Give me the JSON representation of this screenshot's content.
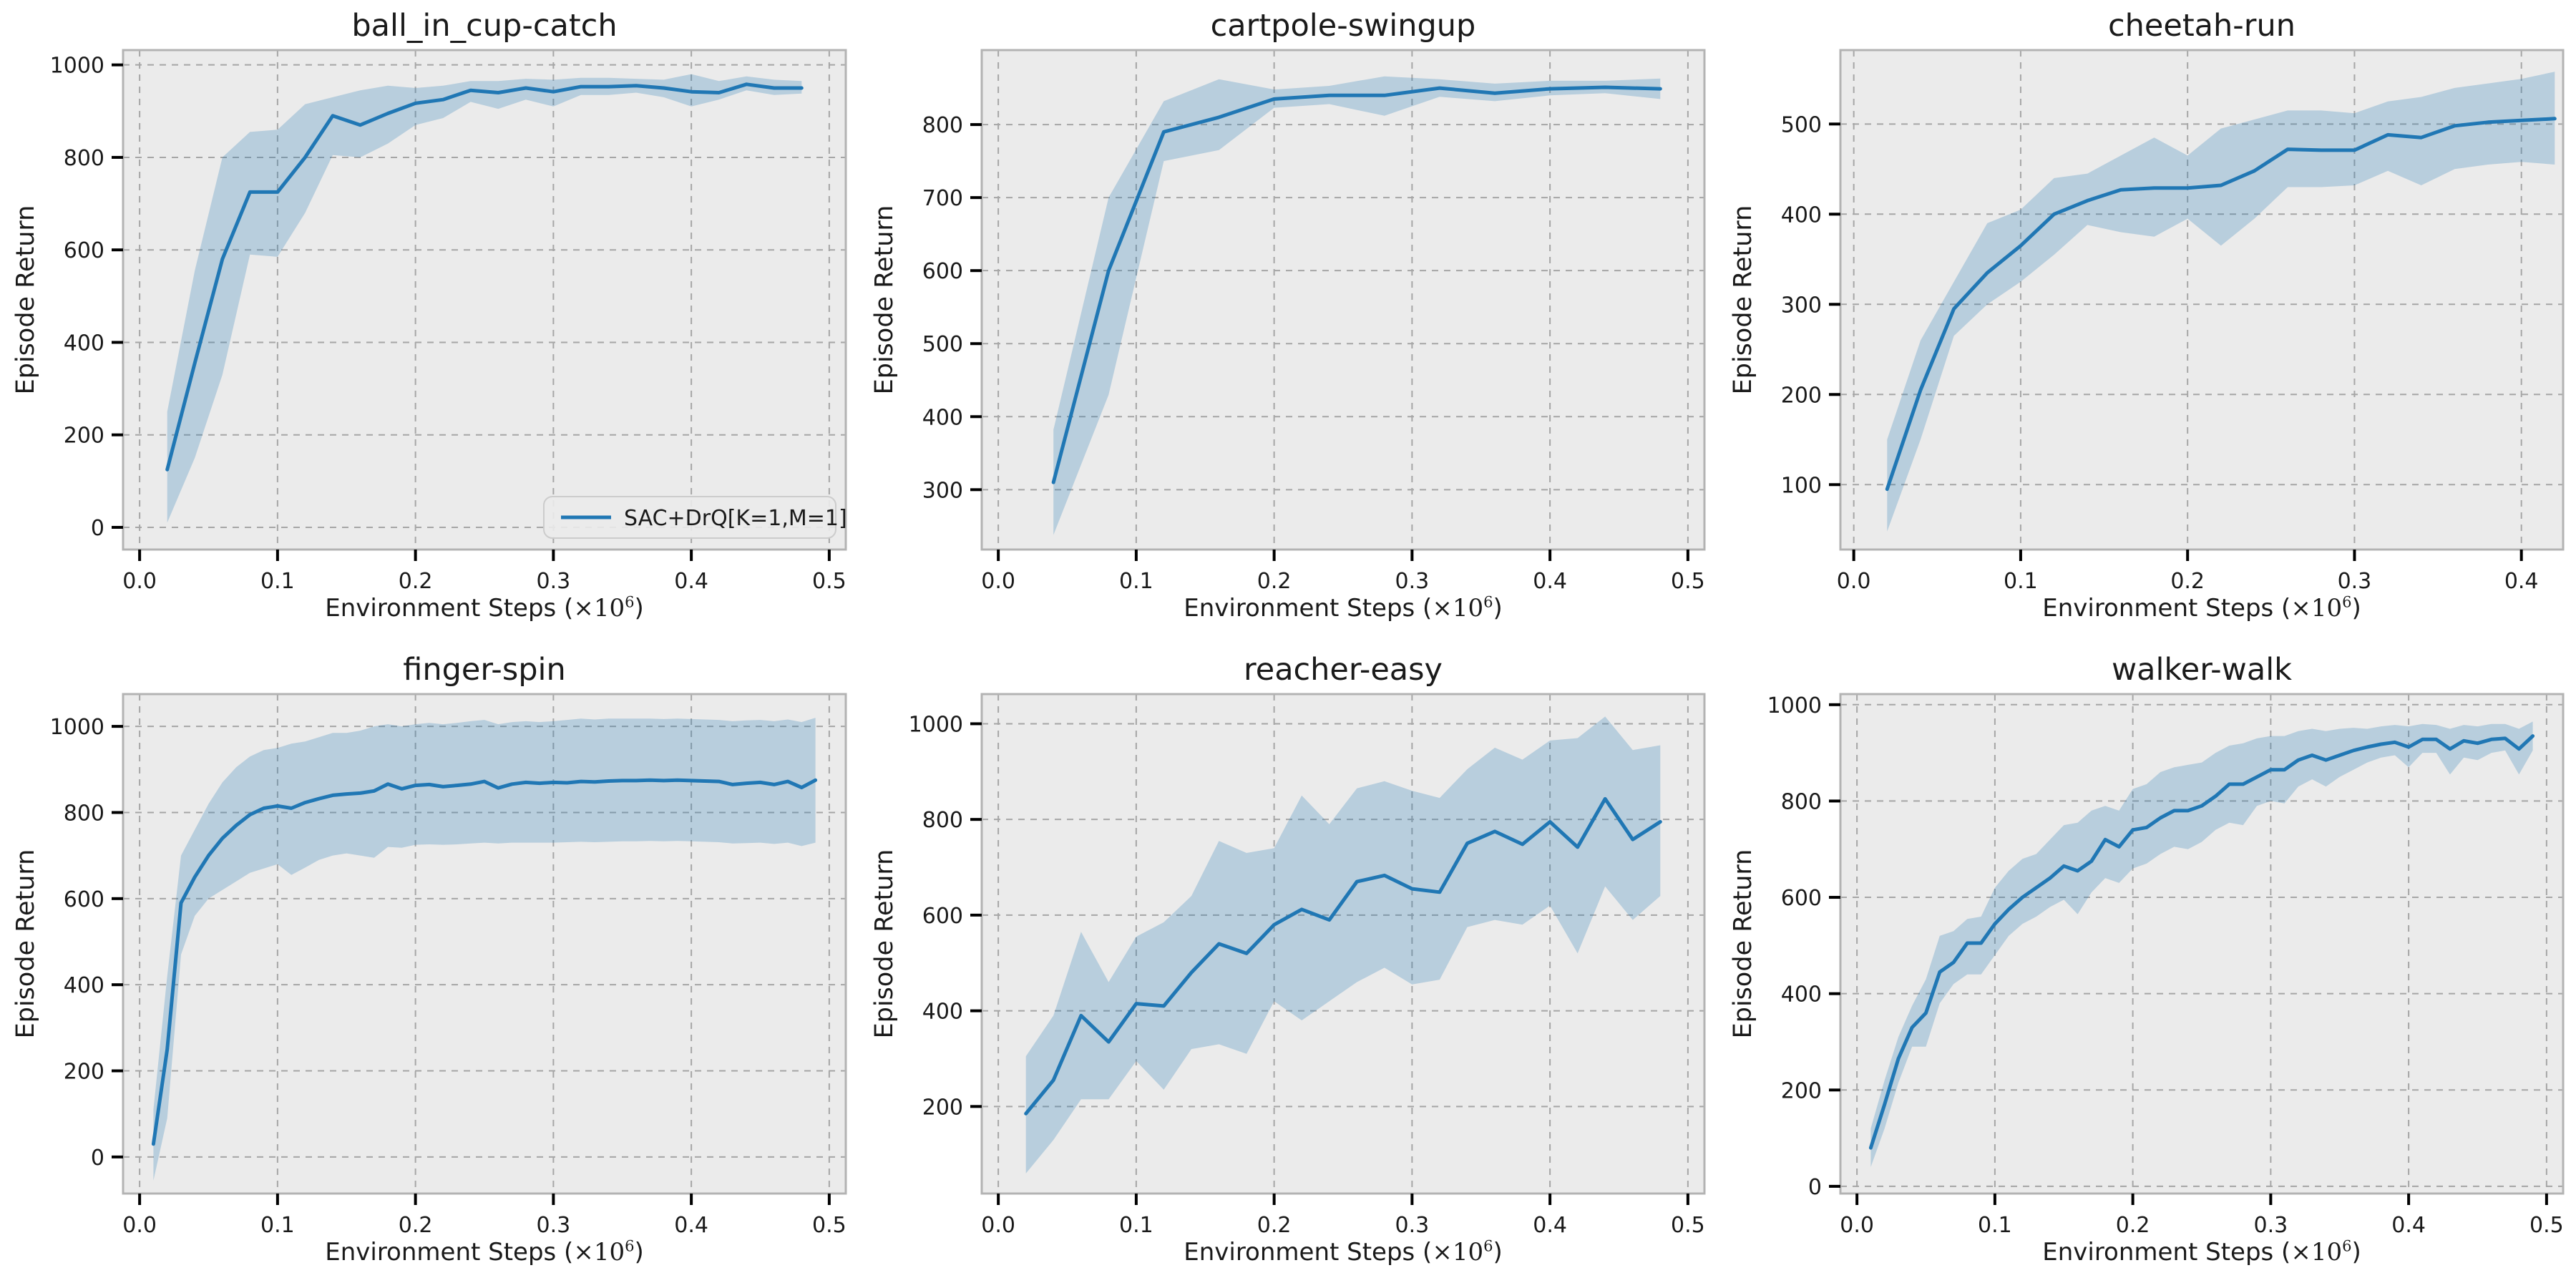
{
  "figure": {
    "ylabel": "Episode Return",
    "xlabel_prefix": "Environment Steps (",
    "xlabel_times": "×10",
    "xlabel_exponent": "6",
    "xlabel_close": ")",
    "legend_label": "SAC+DrQ[K=1,M=1]",
    "style": {
      "line": "#2077b4",
      "band": "rgba(31,119,180,0.25)",
      "plot_bg": "#ebebeb",
      "grid": "#a6a6a6",
      "spine": "#b3b3b3",
      "tick": "#000000",
      "text": "#1a1a1a",
      "legend_bg": "rgba(235,235,235,0.9)",
      "legend_border": "#cccccc"
    }
  },
  "chart_data": [
    {
      "type": "line",
      "title": "ball_in_cup-catch",
      "xlabel": "Environment Steps (×10⁶)",
      "ylabel": "Episode Return",
      "grid": true,
      "legend": [
        "SAC+DrQ[K=1,M=1]"
      ],
      "legend_position": "lower right",
      "xlim": [
        -0.012,
        0.512
      ],
      "ylim": [
        -48,
        1032
      ],
      "xticks": [
        0.0,
        0.1,
        0.2,
        0.3,
        0.4,
        0.5
      ],
      "yticks": [
        0,
        200,
        400,
        600,
        800,
        1000
      ],
      "x": [
        0.02,
        0.04,
        0.06,
        0.08,
        0.1,
        0.12,
        0.14,
        0.16,
        0.18,
        0.2,
        0.22,
        0.24,
        0.26,
        0.28,
        0.3,
        0.32,
        0.34,
        0.36,
        0.38,
        0.4,
        0.42,
        0.44,
        0.46,
        0.48
      ],
      "y": [
        125,
        355,
        580,
        725,
        725,
        800,
        890,
        870,
        895,
        917,
        925,
        945,
        940,
        950,
        942,
        953,
        953,
        955,
        950,
        942,
        940,
        958,
        950,
        950
      ],
      "y_lower": [
        10,
        150,
        330,
        590,
        585,
        680,
        805,
        800,
        830,
        870,
        885,
        920,
        905,
        925,
        910,
        935,
        935,
        940,
        930,
        910,
        925,
        945,
        935,
        938
      ],
      "y_upper": [
        250,
        555,
        800,
        855,
        860,
        915,
        930,
        945,
        955,
        950,
        955,
        965,
        965,
        970,
        968,
        972,
        972,
        970,
        968,
        980,
        965,
        975,
        968,
        965
      ]
    },
    {
      "type": "line",
      "title": "cartpole-swingup",
      "xlabel": "Environment Steps (×10⁶)",
      "ylabel": "Episode Return",
      "grid": true,
      "xlim": [
        -0.012,
        0.512
      ],
      "ylim": [
        218,
        902
      ],
      "xticks": [
        0.0,
        0.1,
        0.2,
        0.3,
        0.4,
        0.5
      ],
      "yticks": [
        300,
        400,
        500,
        600,
        700,
        800
      ],
      "x": [
        0.04,
        0.08,
        0.12,
        0.16,
        0.2,
        0.24,
        0.28,
        0.32,
        0.36,
        0.4,
        0.44,
        0.48
      ],
      "y": [
        310,
        600,
        790,
        810,
        835,
        840,
        840,
        850,
        843,
        849,
        851,
        849
      ],
      "y_lower": [
        238,
        430,
        750,
        765,
        823,
        828,
        812,
        838,
        832,
        840,
        843,
        835
      ],
      "y_upper": [
        382,
        700,
        832,
        862,
        848,
        853,
        866,
        862,
        856,
        860,
        860,
        863
      ]
    },
    {
      "type": "line",
      "title": "cheetah-run",
      "xlabel": "Environment Steps (×10⁶)",
      "ylabel": "Episode Return",
      "grid": true,
      "xlim": [
        -0.008,
        0.425
      ],
      "ylim": [
        28,
        582
      ],
      "xticks": [
        0.0,
        0.1,
        0.2,
        0.3,
        0.4
      ],
      "yticks": [
        100,
        200,
        300,
        400,
        500
      ],
      "x": [
        0.02,
        0.04,
        0.06,
        0.08,
        0.1,
        0.12,
        0.14,
        0.16,
        0.18,
        0.2,
        0.22,
        0.24,
        0.26,
        0.28,
        0.3,
        0.32,
        0.34,
        0.36,
        0.38,
        0.4,
        0.42
      ],
      "y": [
        95,
        205,
        295,
        335,
        365,
        400,
        415,
        427,
        429,
        429,
        432,
        448,
        472,
        471,
        471,
        488,
        485,
        498,
        502,
        504,
        506
      ],
      "y_lower": [
        48,
        150,
        265,
        300,
        325,
        355,
        388,
        380,
        375,
        395,
        365,
        395,
        430,
        430,
        432,
        448,
        432,
        450,
        455,
        458,
        455
      ],
      "y_upper": [
        150,
        260,
        325,
        390,
        405,
        440,
        445,
        465,
        485,
        465,
        495,
        505,
        515,
        515,
        512,
        525,
        530,
        540,
        545,
        550,
        558
      ]
    },
    {
      "type": "line",
      "title": "finger-spin",
      "xlabel": "Environment Steps (×10⁶)",
      "ylabel": "Episode Return",
      "grid": true,
      "xlim": [
        -0.012,
        0.512
      ],
      "ylim": [
        -85,
        1075
      ],
      "xticks": [
        0.0,
        0.1,
        0.2,
        0.3,
        0.4,
        0.5
      ],
      "yticks": [
        0,
        200,
        400,
        600,
        800,
        1000
      ],
      "x": [
        0.01,
        0.02,
        0.03,
        0.04,
        0.05,
        0.06,
        0.07,
        0.08,
        0.09,
        0.1,
        0.11,
        0.12,
        0.13,
        0.14,
        0.15,
        0.16,
        0.17,
        0.18,
        0.19,
        0.2,
        0.21,
        0.22,
        0.23,
        0.24,
        0.25,
        0.26,
        0.27,
        0.28,
        0.29,
        0.3,
        0.31,
        0.32,
        0.33,
        0.34,
        0.35,
        0.36,
        0.37,
        0.38,
        0.39,
        0.4,
        0.41,
        0.42,
        0.43,
        0.44,
        0.45,
        0.46,
        0.47,
        0.48,
        0.49
      ],
      "y": [
        30,
        250,
        590,
        650,
        700,
        740,
        770,
        795,
        810,
        815,
        810,
        823,
        832,
        840,
        843,
        845,
        850,
        866,
        855,
        863,
        865,
        860,
        863,
        866,
        872,
        857,
        866,
        870,
        868,
        870,
        869,
        872,
        871,
        873,
        874,
        874,
        875,
        874,
        875,
        874,
        873,
        872,
        865,
        868,
        870,
        865,
        872,
        858,
        875
      ],
      "y_lower": [
        -55,
        90,
        470,
        560,
        600,
        620,
        640,
        660,
        670,
        680,
        655,
        672,
        690,
        700,
        705,
        700,
        695,
        720,
        718,
        725,
        726,
        725,
        726,
        728,
        730,
        728,
        730,
        730,
        730,
        730,
        731,
        732,
        731,
        732,
        733,
        733,
        734,
        733,
        734,
        733,
        732,
        731,
        728,
        729,
        730,
        727,
        730,
        722,
        730
      ],
      "y_upper": [
        110,
        420,
        700,
        760,
        820,
        870,
        905,
        930,
        945,
        950,
        960,
        965,
        975,
        985,
        985,
        990,
        1000,
        1005,
        1000,
        1005,
        1008,
        1005,
        1008,
        1012,
        1015,
        1005,
        1010,
        1012,
        1010,
        1012,
        1015,
        1018,
        1016,
        1018,
        1018,
        1018,
        1018,
        1017,
        1018,
        1017,
        1016,
        1015,
        1012,
        1014,
        1015,
        1012,
        1016,
        1010,
        1020
      ]
    },
    {
      "type": "line",
      "title": "reacher-easy",
      "xlabel": "Environment Steps (×10⁶)",
      "ylabel": "Episode Return",
      "grid": true,
      "xlim": [
        -0.012,
        0.512
      ],
      "ylim": [
        18,
        1062
      ],
      "xticks": [
        0.0,
        0.1,
        0.2,
        0.3,
        0.4,
        0.5
      ],
      "yticks": [
        200,
        400,
        600,
        800,
        1000
      ],
      "x": [
        0.02,
        0.04,
        0.06,
        0.08,
        0.1,
        0.12,
        0.14,
        0.16,
        0.18,
        0.2,
        0.22,
        0.24,
        0.26,
        0.28,
        0.3,
        0.32,
        0.34,
        0.36,
        0.38,
        0.4,
        0.42,
        0.44,
        0.46,
        0.48
      ],
      "y": [
        185,
        255,
        390,
        335,
        415,
        410,
        480,
        540,
        520,
        580,
        612,
        590,
        670,
        683,
        655,
        648,
        750,
        775,
        748,
        795,
        742,
        843,
        758,
        795
      ],
      "y_lower": [
        60,
        130,
        215,
        215,
        295,
        235,
        320,
        330,
        310,
        420,
        380,
        420,
        460,
        490,
        455,
        465,
        575,
        590,
        580,
        620,
        520,
        660,
        590,
        640
      ],
      "y_upper": [
        305,
        390,
        565,
        460,
        555,
        585,
        640,
        755,
        730,
        740,
        850,
        790,
        865,
        880,
        860,
        845,
        905,
        950,
        925,
        965,
        970,
        1015,
        945,
        955
      ]
    },
    {
      "type": "line",
      "title": "walker-walk",
      "xlabel": "Environment Steps (×10⁶)",
      "ylabel": "Episode Return",
      "grid": true,
      "xlim": [
        -0.012,
        0.512
      ],
      "ylim": [
        -15,
        1022
      ],
      "xticks": [
        0.0,
        0.1,
        0.2,
        0.3,
        0.4,
        0.5
      ],
      "yticks": [
        0,
        200,
        400,
        600,
        800,
        1000
      ],
      "x": [
        0.01,
        0.02,
        0.03,
        0.04,
        0.05,
        0.06,
        0.07,
        0.08,
        0.09,
        0.1,
        0.11,
        0.12,
        0.13,
        0.14,
        0.15,
        0.16,
        0.17,
        0.18,
        0.19,
        0.2,
        0.21,
        0.22,
        0.23,
        0.24,
        0.25,
        0.26,
        0.27,
        0.28,
        0.29,
        0.3,
        0.31,
        0.32,
        0.33,
        0.34,
        0.35,
        0.36,
        0.37,
        0.38,
        0.39,
        0.4,
        0.41,
        0.42,
        0.43,
        0.44,
        0.45,
        0.46,
        0.47,
        0.48,
        0.49
      ],
      "y": [
        80,
        170,
        265,
        330,
        360,
        445,
        465,
        505,
        505,
        545,
        575,
        600,
        620,
        640,
        665,
        655,
        675,
        720,
        705,
        740,
        745,
        765,
        780,
        780,
        790,
        810,
        835,
        835,
        850,
        865,
        865,
        885,
        895,
        885,
        895,
        905,
        912,
        918,
        922,
        912,
        928,
        928,
        908,
        925,
        920,
        928,
        930,
        908,
        935
      ],
      "y_lower": [
        40,
        120,
        215,
        290,
        290,
        380,
        420,
        440,
        440,
        480,
        520,
        545,
        560,
        580,
        595,
        565,
        610,
        640,
        630,
        660,
        670,
        690,
        705,
        700,
        715,
        740,
        755,
        750,
        790,
        800,
        795,
        830,
        845,
        830,
        850,
        865,
        880,
        890,
        895,
        870,
        900,
        900,
        855,
        890,
        885,
        900,
        905,
        855,
        905
      ],
      "y_upper": [
        120,
        220,
        310,
        375,
        430,
        520,
        530,
        555,
        560,
        620,
        655,
        680,
        690,
        720,
        750,
        755,
        780,
        790,
        780,
        825,
        835,
        860,
        870,
        875,
        880,
        900,
        915,
        920,
        930,
        935,
        935,
        945,
        950,
        945,
        950,
        952,
        950,
        955,
        958,
        955,
        960,
        958,
        950,
        958,
        955,
        960,
        960,
        950,
        965
      ]
    }
  ]
}
